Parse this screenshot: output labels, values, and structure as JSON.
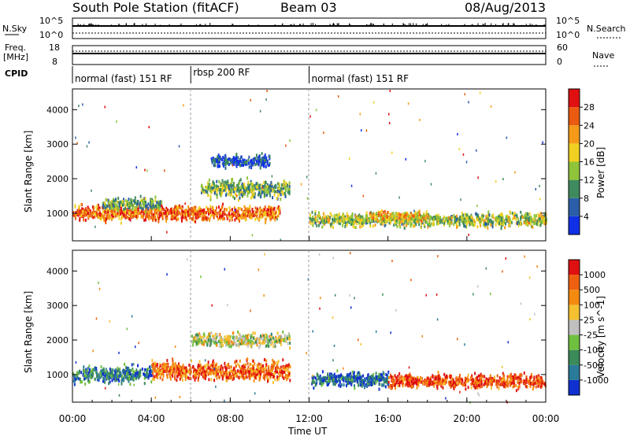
{
  "header": {
    "title": "South Pole Station (fitACF)",
    "beam": "Beam 03",
    "date": "08/Aug/2013"
  },
  "top_panels": {
    "nsky_label": "N.Sky",
    "nsearch_label": "N.Search",
    "nsky_ticks": [
      "10^5",
      "10^0"
    ],
    "nsearch_ticks": [
      "10^5",
      "10^0"
    ],
    "freq_label": "Freq.",
    "freq_unit": "[MHz]",
    "freq_ticks": [
      "18",
      "8"
    ],
    "nave_label": "Nave",
    "nave_ticks": [
      "60",
      "0"
    ],
    "cpid_label": "CPID",
    "cpid_segments": [
      {
        "label": "normal (fast) 151 RF",
        "start_hour": 0,
        "end_hour": 6
      },
      {
        "label": "rbsp 200 RF",
        "start_hour": 6,
        "end_hour": 12
      },
      {
        "label": "normal (fast) 151 RF",
        "start_hour": 12,
        "end_hour": 24
      }
    ]
  },
  "chart_data": [
    {
      "type": "heatmap",
      "panel": "power",
      "ylabel": "Slant Range [km]",
      "y_ticks": [
        1000,
        2000,
        3000,
        4000
      ],
      "ylim": [
        200,
        4600
      ],
      "xlim_hours": [
        0,
        24
      ],
      "colorbar_label": "Power [dB]",
      "colorbar_ticks": [
        "28",
        "24",
        "20",
        "16",
        "12",
        "8",
        "4"
      ],
      "colors": [
        "#1030e8",
        "#2a5ea8",
        "#3f8a5e",
        "#8fc43a",
        "#f0d020",
        "#f59a18",
        "#ea5a10",
        "#e01010"
      ],
      "range_bands": [
        {
          "x_start": 0,
          "x_end": 6,
          "y_center": 1000,
          "y_half": 320,
          "level": 0.8
        },
        {
          "x_start": 1.5,
          "x_end": 4.5,
          "y_center": 1250,
          "y_half": 250,
          "level": 0.35
        },
        {
          "x_start": 6,
          "x_end": 10.5,
          "y_center": 1000,
          "y_half": 300,
          "level": 0.75
        },
        {
          "x_start": 6.5,
          "x_end": 11,
          "y_center": 1700,
          "y_half": 350,
          "level": 0.4
        },
        {
          "x_start": 7,
          "x_end": 10,
          "y_center": 2500,
          "y_half": 250,
          "level": 0.15
        },
        {
          "x_start": 12,
          "x_end": 24,
          "y_center": 800,
          "y_half": 280,
          "level": 0.45
        },
        {
          "x_start": 15,
          "x_end": 18,
          "y_center": 900,
          "y_half": 200,
          "level": 0.6
        }
      ]
    },
    {
      "type": "heatmap",
      "panel": "velocity",
      "xlabel": "Time UT",
      "ylabel": "Slant Range [km]",
      "x_ticks": [
        "00:00",
        "04:00",
        "08:00",
        "12:00",
        "16:00",
        "20:00",
        "00:00"
      ],
      "y_ticks": [
        1000,
        2000,
        3000,
        4000
      ],
      "ylim": [
        200,
        4600
      ],
      "xlim_hours": [
        0,
        24
      ],
      "colorbar_label": "Velocity [m s^-1]",
      "colorbar_ticks": [
        "1000",
        "500",
        "100",
        "25",
        "-25",
        "-100",
        "-500",
        "-1000"
      ],
      "colors": [
        "#1030d0",
        "#2a7a9a",
        "#3a8a5a",
        "#70c040",
        "#c0c0c0",
        "#f5c030",
        "#f58a10",
        "#ee6010",
        "#e01010"
      ],
      "range_bands": [
        {
          "x_start": 0,
          "x_end": 4,
          "y_center": 1000,
          "y_half": 320,
          "level": 0.2
        },
        {
          "x_start": 4,
          "x_end": 11,
          "y_center": 1100,
          "y_half": 380,
          "level": 0.8
        },
        {
          "x_start": 6,
          "x_end": 11,
          "y_center": 2000,
          "y_half": 280,
          "level": 0.5
        },
        {
          "x_start": 12,
          "x_end": 16,
          "y_center": 850,
          "y_half": 300,
          "level": 0.15
        },
        {
          "x_start": 16,
          "x_end": 24,
          "y_center": 800,
          "y_half": 280,
          "level": 0.85
        }
      ]
    }
  ]
}
